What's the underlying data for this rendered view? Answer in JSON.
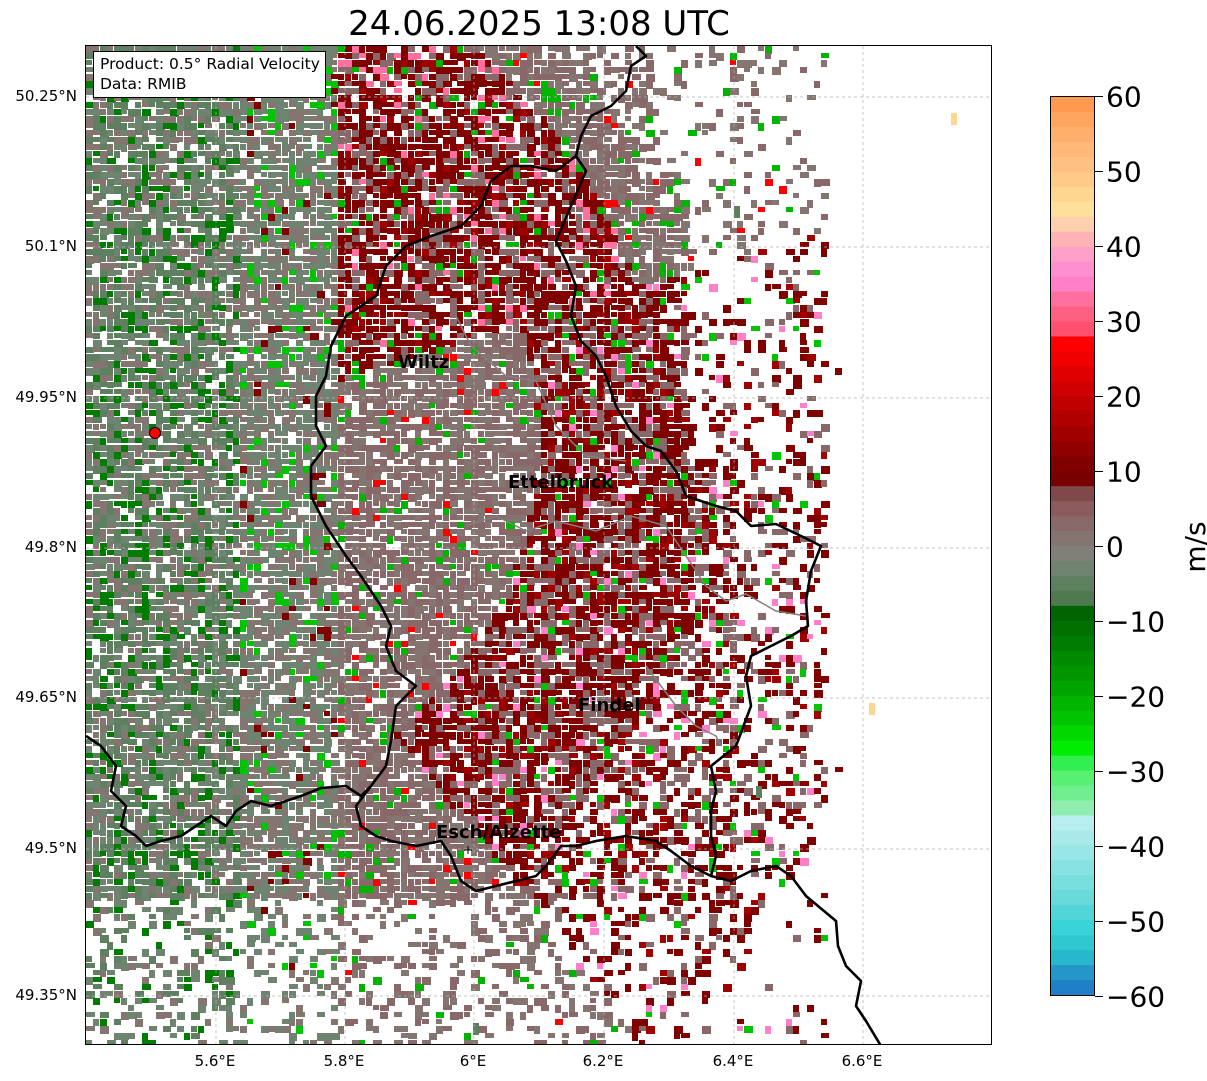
{
  "title": "24.06.2025 13:08 UTC",
  "info": {
    "product": "Product: 0.5° Radial Velocity",
    "data": "Data: RMIB"
  },
  "latitudes": [
    "50.25°N",
    "50.1°N",
    "49.95°N",
    "49.8°N",
    "49.65°N",
    "49.5°N",
    "49.35°N"
  ],
  "longitudes": [
    "5.6°E",
    "5.8°E",
    "6°E",
    "6.2°E",
    "6.4°E",
    "6.6°E"
  ],
  "cities": [
    {
      "name": "Wiltz"
    },
    {
      "name": "Ettelbruck"
    },
    {
      "name": "Findel"
    },
    {
      "name": "Esch/Alzette"
    }
  ],
  "colorbar": {
    "unit": "m/s",
    "ticks": [
      "60",
      "50",
      "40",
      "30",
      "20",
      "10",
      "0",
      "−10",
      "−20",
      "−30",
      "−40",
      "−50",
      "−60"
    ],
    "range": [
      -60,
      60
    ]
  },
  "colors": {
    "approaching_strong": "#1f78c8",
    "approaching_cyan": "#2ed8d8",
    "approaching_green": "#00e000",
    "approaching_dark_green": "#006400",
    "near_zero": "#837a78",
    "receding_dark_red": "#800000",
    "receding_red": "#ff0000",
    "receding_pink": "#ff80c0",
    "receding_orange": "#ffa050",
    "border": "#000000",
    "river": "#808080",
    "radar_site": "#ff0000"
  }
}
